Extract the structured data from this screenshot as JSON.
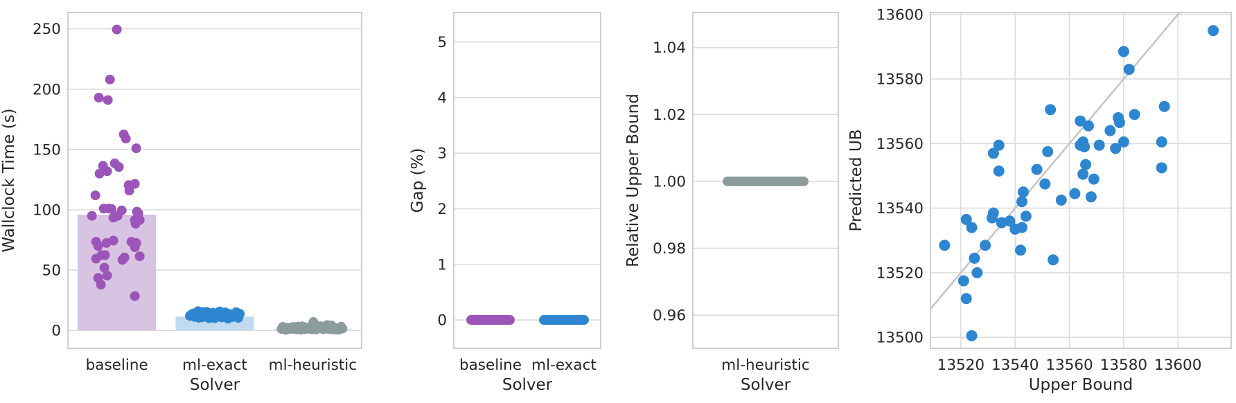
{
  "style": {
    "background": "#ffffff",
    "text_color": "#262626",
    "grid_color": "#dcdcdc",
    "spine_color": "#cfcfcf",
    "identity_line_color": "#c4c4c4",
    "purple_dot": "#9b55b8",
    "purple_bar": "#d8c3e2",
    "blue_dot": "#2e86d1",
    "blue_bar": "#c1daf0",
    "gray_dot": "#8c9b9b",
    "gray_bar": "#e0e6e6"
  },
  "chart_data": [
    {
      "type": "bar",
      "subtype": "bar-with-strip-overlay",
      "title": "",
      "xlabel": "Solver",
      "ylabel": "Wallclock Time (s)",
      "ylim": [
        -14.8,
        263.6
      ],
      "yticks": [
        0,
        50,
        100,
        150,
        200,
        250
      ],
      "grid": "horizontal",
      "categories": [
        {
          "label": "baseline",
          "bar_value": 96,
          "bar_color": "#d8c3e2",
          "dot_color": "#9b55b8",
          "points": [
            [
              0,
              249.5
            ],
            [
              -10,
              208
            ],
            [
              -26,
              193
            ],
            [
              -13,
              191
            ],
            [
              10,
              162.5
            ],
            [
              13,
              159
            ],
            [
              28,
              151
            ],
            [
              -3,
              138.5
            ],
            [
              3,
              135.5
            ],
            [
              -20,
              136.5
            ],
            [
              -25,
              130
            ],
            [
              -14,
              132
            ],
            [
              17,
              120.5
            ],
            [
              26,
              121.5
            ],
            [
              18,
              116
            ],
            [
              -31,
              112
            ],
            [
              -19,
              101
            ],
            [
              -12,
              101
            ],
            [
              -8,
              100.8
            ],
            [
              7,
              99.5
            ],
            [
              29,
              98.5
            ],
            [
              31,
              97
            ],
            [
              -36,
              95
            ],
            [
              -5,
              93.5
            ],
            [
              1,
              95
            ],
            [
              26,
              91.5
            ],
            [
              33,
              91.5
            ],
            [
              27,
              88.5
            ],
            [
              -30,
              73.5
            ],
            [
              -15,
              72.5
            ],
            [
              -5,
              74.5
            ],
            [
              21,
              73.5
            ],
            [
              28,
              72.5
            ],
            [
              -27,
              70
            ],
            [
              26,
              69
            ],
            [
              -22,
              62.5
            ],
            [
              -17,
              62.5
            ],
            [
              11,
              60.5
            ],
            [
              33,
              61.5
            ],
            [
              -30,
              59.5
            ],
            [
              8,
              58.5
            ],
            [
              -18,
              52
            ],
            [
              -14,
              45.5
            ],
            [
              -27,
              43.5
            ],
            [
              -23,
              38
            ],
            [
              26,
              28.5
            ]
          ]
        },
        {
          "label": "ml-exact",
          "bar_value": 11.5,
          "bar_color": "#c1daf0",
          "dot_color": "#2e86d1",
          "points": [
            [
              -36,
              12.1
            ],
            [
              -33,
              13.4
            ],
            [
              -29,
              11.2
            ],
            [
              -26,
              14.8
            ],
            [
              -23,
              10.5
            ],
            [
              -20,
              12.9
            ],
            [
              -17,
              15.2
            ],
            [
              -14,
              11.8
            ],
            [
              -11,
              13.9
            ],
            [
              -8,
              10.1
            ],
            [
              -5,
              12.4
            ],
            [
              -2,
              14.2
            ],
            [
              1,
              11.5
            ],
            [
              4,
              13.1
            ],
            [
              7,
              15.8
            ],
            [
              10,
              10.8
            ],
            [
              13,
              12.7
            ],
            [
              16,
              14.5
            ],
            [
              19,
              9.8
            ],
            [
              22,
              13.6
            ],
            [
              25,
              11.1
            ],
            [
              28,
              12.2
            ],
            [
              31,
              15.1
            ],
            [
              34,
              10.4
            ],
            [
              36,
              13.8
            ],
            [
              -35,
              12.6
            ],
            [
              -31,
              14.1
            ],
            [
              -27,
              11.4
            ],
            [
              -24,
              16.0
            ],
            [
              -21,
              12.8
            ],
            [
              -18,
              10.9
            ],
            [
              -15,
              13.3
            ],
            [
              -12,
              15.5
            ],
            [
              -9,
              11.7
            ],
            [
              -6,
              12.5
            ],
            [
              -3,
              14.7
            ],
            [
              0,
              10.2
            ],
            [
              3,
              13.0
            ],
            [
              6,
              11.9
            ],
            [
              9,
              14.0
            ],
            [
              12,
              12.3
            ],
            [
              15,
              15.0
            ],
            [
              18,
              10.6
            ],
            [
              21,
              13.7
            ],
            [
              24,
              11.3
            ]
          ]
        },
        {
          "label": "ml-heuristic",
          "bar_value": 1.5,
          "bar_color": "#e0e6e6",
          "dot_color": "#8c9b9b",
          "points": [
            [
              -45,
              1.2
            ],
            [
              -41,
              2.1
            ],
            [
              -37,
              0.8
            ],
            [
              -33,
              1.6
            ],
            [
              -29,
              2.8
            ],
            [
              -25,
              1.1
            ],
            [
              -21,
              3.2
            ],
            [
              -17,
              0.6
            ],
            [
              -13,
              1.9
            ],
            [
              -9,
              2.4
            ],
            [
              -5,
              1.4
            ],
            [
              -1,
              0.9
            ],
            [
              3,
              2.2
            ],
            [
              7,
              1.7
            ],
            [
              11,
              3.6
            ],
            [
              15,
              1.0
            ],
            [
              19,
              2.6
            ],
            [
              23,
              1.3
            ],
            [
              27,
              4.2
            ],
            [
              31,
              0.7
            ],
            [
              35,
              1.8
            ],
            [
              39,
              2.0
            ],
            [
              43,
              1.5
            ],
            [
              -43,
              3.0
            ],
            [
              -39,
              0.5
            ],
            [
              -35,
              2.3
            ],
            [
              -31,
              1.2
            ],
            [
              -27,
              2.9
            ],
            [
              -23,
              0.9
            ],
            [
              -19,
              1.6
            ],
            [
              -15,
              3.4
            ],
            [
              -11,
              1.1
            ],
            [
              -7,
              2.5
            ],
            [
              -3,
              1.4
            ],
            [
              1,
              7.0
            ],
            [
              5,
              0.8
            ],
            [
              9,
              1.9
            ],
            [
              13,
              2.7
            ],
            [
              17,
              1.3
            ],
            [
              21,
              4.5
            ],
            [
              25,
              1.0
            ],
            [
              29,
              2.2
            ],
            [
              33,
              1.7
            ],
            [
              37,
              0.6
            ],
            [
              41,
              3.1
            ]
          ]
        }
      ]
    },
    {
      "type": "scatter",
      "subtype": "strip",
      "title": "",
      "xlabel": "Solver",
      "ylabel": "Gap (%)",
      "ylim": [
        -0.51,
        5.53
      ],
      "yticks": [
        0,
        1,
        2,
        3,
        4,
        5
      ],
      "grid": "horizontal",
      "categories": [
        {
          "label": "baseline",
          "dot_color": "#9b55b8",
          "value": 0,
          "jitter": [
            -28,
            -26,
            -25,
            -23,
            -22,
            -20,
            -19,
            -17,
            -16,
            -14,
            -13,
            -11,
            -10,
            -8,
            -7,
            -5,
            -4,
            -2,
            -1,
            1,
            2,
            4,
            5,
            7,
            8,
            10,
            11,
            13,
            14,
            16,
            17,
            19,
            20,
            22,
            23,
            25,
            26,
            28,
            -27,
            -18,
            -9,
            0,
            9,
            18,
            27
          ]
        },
        {
          "label": "ml-exact",
          "dot_color": "#2e86d1",
          "value": 0,
          "jitter": [
            -29,
            -27,
            -25,
            -23,
            -22,
            -20,
            -19,
            -17,
            -16,
            -14,
            -13,
            -11,
            -10,
            -8,
            -7,
            -5,
            -4,
            -2,
            -1,
            1,
            2,
            4,
            5,
            7,
            8,
            10,
            11,
            13,
            14,
            16,
            17,
            19,
            20,
            22,
            23,
            25,
            27,
            29,
            -28,
            -18,
            -9,
            0,
            9,
            18,
            28
          ]
        }
      ]
    },
    {
      "type": "scatter",
      "subtype": "strip",
      "title": "",
      "xlabel": "Solver",
      "ylabel": "Relative Upper Bound",
      "ylim": [
        0.9501,
        1.0505
      ],
      "yticks": [
        0.96,
        0.98,
        1.0,
        1.02,
        1.04
      ],
      "ytick_labels": [
        "0.96",
        "0.98",
        "1.00",
        "1.02",
        "1.04"
      ],
      "grid": "horizontal",
      "categories": [
        {
          "label": "ml-heuristic",
          "dot_color": "#8c9b9b",
          "value": 1.0,
          "jitter": [
            -55,
            -52,
            -50,
            -47,
            -45,
            -42,
            -40,
            -37,
            -35,
            -32,
            -30,
            -27,
            -25,
            -22,
            -20,
            -17,
            -15,
            -12,
            -10,
            -7,
            -5,
            -2,
            0,
            2,
            5,
            7,
            10,
            12,
            15,
            17,
            20,
            22,
            25,
            27,
            30,
            32,
            35,
            37,
            40,
            42,
            45,
            47,
            50,
            52,
            55
          ]
        }
      ]
    },
    {
      "type": "scatter",
      "subtype": "xy-scatter",
      "title": "",
      "xlabel": "Upper Bound",
      "ylabel": "Predicted UB",
      "xlim": [
        13508.8,
        13619.6
      ],
      "ylim": [
        13496.6,
        13600.6
      ],
      "xticks": [
        13520,
        13540,
        13560,
        13580,
        13600
      ],
      "yticks": [
        13500,
        13520,
        13540,
        13560,
        13580,
        13600
      ],
      "grid": "both",
      "dot_color": "#2e86d1",
      "identity_line": {
        "equation": "y = x",
        "color": "#c4c4c4"
      },
      "points": [
        [
          13613,
          13595
        ],
        [
          13580,
          13588.5
        ],
        [
          13582,
          13583
        ],
        [
          13595,
          13571.5
        ],
        [
          13553,
          13570.5
        ],
        [
          13584,
          13569
        ],
        [
          13578,
          13568
        ],
        [
          13578.5,
          13566.5
        ],
        [
          13564,
          13567
        ],
        [
          13567,
          13565.5
        ],
        [
          13575,
          13564
        ],
        [
          13534,
          13559.5
        ],
        [
          13532,
          13557
        ],
        [
          13565,
          13560.5
        ],
        [
          13564,
          13559.5
        ],
        [
          13565.5,
          13559
        ],
        [
          13580,
          13560.5
        ],
        [
          13571,
          13559.5
        ],
        [
          13594,
          13560.5
        ],
        [
          13577,
          13558.5
        ],
        [
          13552,
          13557.5
        ],
        [
          13534,
          13551.5
        ],
        [
          13566,
          13553.5
        ],
        [
          13548,
          13552
        ],
        [
          13594,
          13552.5
        ],
        [
          13565,
          13550.5
        ],
        [
          13569,
          13549
        ],
        [
          13551,
          13547.5
        ],
        [
          13543,
          13545
        ],
        [
          13562,
          13544.5
        ],
        [
          13568,
          13543.5
        ],
        [
          13557,
          13542.5
        ],
        [
          13542.5,
          13542
        ],
        [
          13532,
          13538.5
        ],
        [
          13531.5,
          13537
        ],
        [
          13522,
          13536.5
        ],
        [
          13544,
          13537.5
        ],
        [
          13535,
          13535.5
        ],
        [
          13538,
          13536
        ],
        [
          13524,
          13534
        ],
        [
          13542.5,
          13534
        ],
        [
          13540,
          13533.5
        ],
        [
          13514,
          13528.5
        ],
        [
          13529,
          13528.5
        ],
        [
          13542,
          13527
        ],
        [
          13525,
          13524.5
        ],
        [
          13554,
          13524
        ],
        [
          13526,
          13520
        ],
        [
          13521,
          13517.5
        ],
        [
          13522,
          13512
        ],
        [
          13524,
          13500.5
        ]
      ]
    }
  ]
}
